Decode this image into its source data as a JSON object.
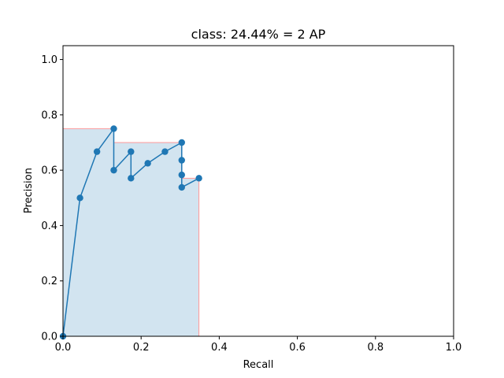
{
  "chart_data": {
    "type": "line",
    "title": "class: 24.44% = 2 AP",
    "xlabel": "Recall",
    "ylabel": "Precision",
    "xlim": [
      0.0,
      1.0
    ],
    "ylim": [
      0.0,
      1.05
    ],
    "x_ticks": [
      "0.0",
      "0.2",
      "0.4",
      "0.6",
      "0.8",
      "1.0"
    ],
    "y_ticks": [
      "0.0",
      "0.2",
      "0.4",
      "0.6",
      "0.8",
      "1.0"
    ],
    "grid": false,
    "series": [
      {
        "color": "#1f77b4",
        "x": [
          0.0,
          0.0435,
          0.087,
          0.13,
          0.13,
          0.174,
          0.174,
          0.217,
          0.261,
          0.304,
          0.304,
          0.304,
          0.304,
          0.348
        ],
        "y": [
          0.0,
          0.5,
          0.667,
          0.75,
          0.6,
          0.667,
          0.571,
          0.625,
          0.667,
          0.7,
          0.636,
          0.583,
          0.538,
          0.571
        ]
      }
    ],
    "ap_area": {
      "fill_color": "#1f77b4",
      "fill_opacity": 0.2,
      "edge_color": "#ff9999",
      "x": [
        0.0,
        0.0,
        0.13,
        0.13,
        0.304,
        0.304,
        0.348,
        0.348
      ],
      "y": [
        0.0,
        0.75,
        0.75,
        0.7,
        0.7,
        0.571,
        0.571,
        0.0
      ]
    }
  }
}
